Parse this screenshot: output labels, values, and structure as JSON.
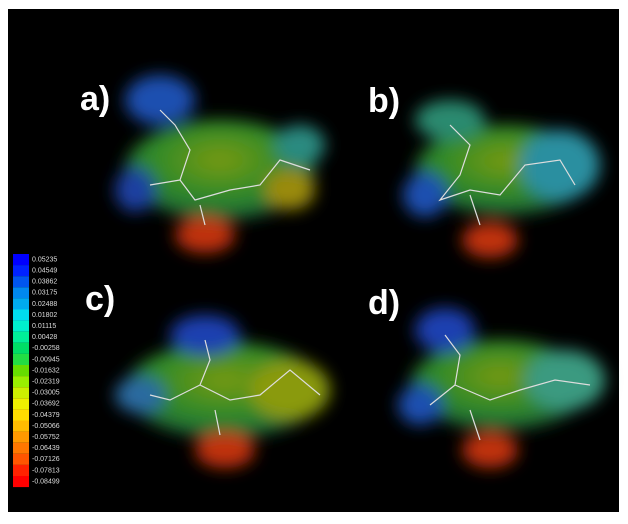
{
  "panels": [
    {
      "label": "a)"
    },
    {
      "label": "b)"
    },
    {
      "label": "c)"
    },
    {
      "label": "d)"
    }
  ],
  "legend": {
    "entries": [
      {
        "label": "0.05235",
        "color": "#0000ff"
      },
      {
        "label": "0.04549",
        "color": "#0022ff"
      },
      {
        "label": "0.03862",
        "color": "#0055ee"
      },
      {
        "label": "0.03175",
        "color": "#0088ee"
      },
      {
        "label": "0.02488",
        "color": "#00aaee"
      },
      {
        "label": "0.01802",
        "color": "#00ddee"
      },
      {
        "label": "0.01115",
        "color": "#00eecc"
      },
      {
        "label": "0.00428",
        "color": "#00ee99"
      },
      {
        "label": "-0.00258",
        "color": "#00dd66"
      },
      {
        "label": "-0.00945",
        "color": "#22dd44"
      },
      {
        "label": "-0.01632",
        "color": "#66dd00"
      },
      {
        "label": "-0.02319",
        "color": "#99ee00"
      },
      {
        "label": "-0.03005",
        "color": "#ccee00"
      },
      {
        "label": "-0.03692",
        "color": "#eeee00"
      },
      {
        "label": "-0.04379",
        "color": "#ffdd00"
      },
      {
        "label": "-0.05066",
        "color": "#ffbb00"
      },
      {
        "label": "-0.05752",
        "color": "#ff9900"
      },
      {
        "label": "-0.06439",
        "color": "#ff7700"
      },
      {
        "label": "-0.07126",
        "color": "#ff5500"
      },
      {
        "label": "-0.07813",
        "color": "#ff2200"
      },
      {
        "label": "-0.08499",
        "color": "#ff0000"
      }
    ]
  }
}
